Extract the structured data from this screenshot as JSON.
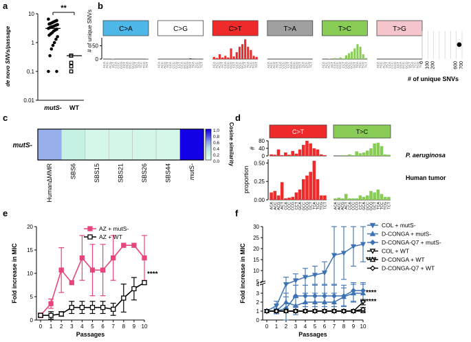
{
  "panel_labels": {
    "a": "a",
    "b": "b",
    "c": "c",
    "d": "d",
    "e": "e",
    "f": "f"
  },
  "chart_data": [
    {
      "panel": "a",
      "type": "scatter",
      "ylabel": "de novo SNVs/passage",
      "y_scale": "log",
      "ylim": [
        0.01,
        10
      ],
      "yticks": [
        "10",
        "1",
        "0.1",
        "0.01"
      ],
      "categories": [
        "mutS-",
        "WT"
      ],
      "significance": "**",
      "series": [
        {
          "name": "mutS-",
          "marker": "filled-circle",
          "values": [
            6.5,
            5.8,
            5.5,
            5.2,
            4.9,
            4.6,
            4.4,
            4.2,
            4.0,
            3.8,
            3.6,
            3.5,
            3.3,
            3.1,
            2.9,
            2.7,
            2.5,
            2.2,
            2.0,
            1.8,
            1.6,
            1.3,
            1.0,
            0.8,
            0.6,
            0.35,
            0.1,
            0.1
          ]
        },
        {
          "name": "WT",
          "marker": "open-square",
          "values": [
            0.35,
            0.35,
            0.35,
            0.35,
            0.35,
            0.35,
            0.2,
            0.15,
            0.1
          ]
        }
      ]
    },
    {
      "panel": "b",
      "type": "bar",
      "ylabel": "# of unique SNVs",
      "yticks": [
        "50",
        "0"
      ],
      "ylim": [
        0,
        80
      ],
      "groups": [
        {
          "label": "C>A",
          "color": "#4db8e8",
          "values": [
            0,
            0,
            0,
            1,
            0,
            0,
            0,
            0,
            0,
            0,
            0,
            0,
            0,
            0,
            0,
            1
          ]
        },
        {
          "label": "C>G",
          "color": "#ffffff",
          "values": [
            0,
            0,
            0,
            0,
            0,
            0,
            0,
            0,
            0,
            0,
            0,
            2,
            1,
            0,
            0,
            0
          ]
        },
        {
          "label": "C>T",
          "color": "#ee2a2a",
          "values": [
            8,
            4,
            18,
            6,
            12,
            6,
            40,
            10,
            26,
            46,
            56,
            74,
            46,
            34,
            12,
            8
          ]
        },
        {
          "label": "T>A",
          "color": "#a0a0a0",
          "values": [
            0,
            0,
            0,
            0,
            0,
            0,
            0,
            0,
            0,
            0,
            0,
            0,
            0,
            0,
            0,
            0
          ]
        },
        {
          "label": "T>C",
          "color": "#88cc55",
          "values": [
            0,
            0,
            1,
            0,
            4,
            0,
            6,
            2,
            14,
            22,
            28,
            40,
            56,
            46,
            18,
            4
          ]
        },
        {
          "label": "T>G",
          "color": "#f4c6cc",
          "values": [
            0,
            0,
            0,
            0,
            0,
            0,
            0,
            0,
            0,
            0,
            0,
            0,
            0,
            0,
            0,
            0
          ]
        }
      ],
      "context_labels": [
        "ACA",
        "ACC",
        "ACG",
        "ACT",
        "CCA",
        "CCC",
        "CCG",
        "CCT",
        "GCA",
        "GCC",
        "GCG",
        "GCT",
        "TCA",
        "TCC",
        "TCG",
        "TCT"
      ],
      "side_plot": {
        "xlabel": "# of unique SNVs",
        "xticks": [
          "0",
          "100",
          "200",
          "300",
          "400",
          "500",
          "600",
          "700"
        ],
        "xlim": [
          0,
          700
        ],
        "point": 650
      }
    },
    {
      "panel": "c",
      "type": "heatmap",
      "row_label": "mutS-",
      "columns": [
        "HumanΔMMR",
        "SBS6",
        "SBS15",
        "SBS21",
        "SBS26",
        "SBS44",
        "mutS-"
      ],
      "values": [
        0.55,
        0.22,
        0.12,
        0.14,
        0.14,
        0.12,
        1.0
      ],
      "colorbar_label": "Cosine similarity",
      "colorbar_ticks": [
        "1.0",
        "0.8",
        "0.6",
        "0.4",
        "0.2",
        "0.0"
      ]
    },
    {
      "panel": "d",
      "type": "bar",
      "groups": [
        {
          "label": "C>T",
          "color": "#ee2a2a"
        },
        {
          "label": "T>C",
          "color": "#88cc55"
        }
      ],
      "context_labels": [
        "ACA",
        "ACC",
        "ACG",
        "ACT",
        "CCA",
        "CCC",
        "CCG",
        "CCT",
        "GCA",
        "GCC",
        "GCG",
        "GCT",
        "TCA",
        "TCC",
        "TCG",
        "TCT"
      ],
      "rows": [
        {
          "species": "P. aeruginosa",
          "ylabel": "#",
          "ylim": [
            0,
            80
          ],
          "yticks": [
            "80",
            "40",
            "0"
          ],
          "ct_values": [
            8,
            6,
            34,
            4,
            18,
            6,
            26,
            12,
            34,
            58,
            80,
            66,
            40,
            34,
            8,
            4
          ],
          "tc_values": [
            0,
            0,
            4,
            0,
            8,
            4,
            24,
            14,
            18,
            28,
            40,
            66,
            70,
            52,
            8,
            6
          ]
        },
        {
          "species": "Human tumor",
          "ylabel": "proportion",
          "ylim": [
            0,
            0.55
          ],
          "yticks": [
            "0.50",
            "0.25",
            "0.00"
          ],
          "ct_values": [
            0.1,
            0.12,
            0.06,
            0.24,
            0.02,
            0.03,
            0.04,
            0.1,
            0.14,
            0.28,
            0.33,
            0.38,
            0.53,
            0.28,
            0.06,
            0.06
          ],
          "tc_values": [
            0.02,
            0.03,
            0.02,
            0.08,
            0.02,
            0.02,
            0.02,
            0.06,
            0.04,
            0.06,
            0.12,
            0.1,
            0.14,
            0.08,
            0.04,
            0.04
          ]
        }
      ]
    },
    {
      "panel": "e",
      "type": "line",
      "xlabel": "Passages",
      "ylabel": "Fold increase in MIC",
      "xlim": [
        0,
        10
      ],
      "ylim": [
        0,
        20
      ],
      "xticks": [
        "0",
        "1",
        "2",
        "3",
        "4",
        "5",
        "6",
        "7",
        "8",
        "9",
        "10"
      ],
      "yticks": [
        "0",
        "5",
        "10",
        "15",
        "20"
      ],
      "significance": "****",
      "series": [
        {
          "name": "AZ + mutS-",
          "color": "#e8457d",
          "marker": "filled-square",
          "x": [
            0,
            1,
            2,
            3,
            4,
            5,
            6,
            7,
            8,
            9,
            10
          ],
          "y": [
            1,
            3.5,
            10.7,
            8,
            13.3,
            10.7,
            10.7,
            13.3,
            16,
            16,
            13.3
          ],
          "err": [
            0.5,
            1,
            4.8,
            0,
            4.8,
            5.5,
            5.5,
            4.8,
            0,
            0,
            4.8
          ]
        },
        {
          "name": "AZ + WT",
          "color": "#000000",
          "marker": "open-square",
          "x": [
            0,
            1,
            2,
            3,
            4,
            5,
            6,
            7,
            8,
            9,
            10
          ],
          "y": [
            1,
            1,
            1.3,
            2.7,
            2.7,
            2.7,
            2.7,
            2.3,
            4.7,
            6.7,
            8
          ],
          "err": [
            0.3,
            0.8,
            0.5,
            1.3,
            1.3,
            1.3,
            1.3,
            1.3,
            3,
            2.4,
            0
          ]
        }
      ]
    },
    {
      "panel": "f",
      "type": "line",
      "xlabel": "Passages",
      "ylabel": "Fold increase in MIC",
      "xlim": [
        0,
        10
      ],
      "y_axis_break": true,
      "yticks_lower": [
        "0",
        "1",
        "2",
        "3",
        "4"
      ],
      "yticks_upper": [
        "5",
        "10",
        "15",
        "20",
        "25",
        "30"
      ],
      "significance": [
        "****",
        "****",
        "****"
      ],
      "series": [
        {
          "name": "COL + mutS-",
          "color": "#3d72b4",
          "marker": "filled-triangle-down",
          "x": [
            0,
            1,
            2,
            3,
            4,
            5,
            6,
            7,
            8,
            9,
            10
          ],
          "y": [
            1,
            1.6,
            4,
            5.5,
            7,
            8,
            9,
            17,
            18,
            21,
            22
          ],
          "err": [
            0,
            0.5,
            3,
            3,
            4,
            4,
            5,
            13,
            12,
            9,
            8
          ]
        },
        {
          "name": "D-CONGA + mutS-",
          "color": "#3d72b4",
          "marker": "filled-triangle-up",
          "x": [
            0,
            1,
            2,
            3,
            4,
            5,
            6,
            7,
            8,
            9,
            10
          ],
          "y": [
            1,
            1,
            2,
            1.6,
            2,
            2,
            2,
            2,
            2.6,
            3,
            3
          ],
          "err": [
            0,
            0.3,
            1,
            1,
            1,
            1,
            1,
            1,
            1,
            1,
            1
          ]
        },
        {
          "name": "D-CONGA-Q7 + mutS-",
          "color": "#3d72b4",
          "marker": "filled-diamond",
          "x": [
            0,
            1,
            2,
            3,
            4,
            5,
            6,
            7,
            8,
            9,
            10
          ],
          "y": [
            1,
            1,
            1.3,
            2.7,
            2.7,
            2.7,
            2.7,
            2.7,
            2.7,
            3.3,
            3.3
          ],
          "err": [
            0,
            0.3,
            1.3,
            1.2,
            1.2,
            1.2,
            1.2,
            1.2,
            1.2,
            1.2,
            1.2
          ]
        },
        {
          "name": "COL + WT",
          "color": "#000000",
          "marker": "open-triangle-down",
          "x": [
            0,
            1,
            2,
            3,
            4,
            5,
            6,
            7,
            8,
            9,
            10
          ],
          "y": [
            1,
            1,
            1,
            1,
            1,
            1,
            1,
            1,
            1,
            1,
            2
          ],
          "err": [
            0,
            0,
            0,
            0,
            0,
            0,
            0,
            0,
            0,
            0,
            0.3
          ]
        },
        {
          "name": "D-CONGA + WT",
          "color": "#000000",
          "marker": "open-triangle-up",
          "x": [
            0,
            1,
            2,
            3,
            4,
            5,
            6,
            7,
            8,
            9,
            10
          ],
          "y": [
            1,
            1,
            1,
            1,
            1,
            1,
            1,
            1,
            1,
            1,
            1
          ],
          "err": [
            0,
            0,
            0,
            0,
            0,
            0,
            0,
            0,
            0,
            0,
            0
          ]
        },
        {
          "name": "D-CONGA-Q7 + WT",
          "color": "#000000",
          "marker": "open-diamond",
          "x": [
            0,
            1,
            2,
            3,
            4,
            5,
            6,
            7,
            8,
            9,
            10
          ],
          "y": [
            1,
            1,
            1,
            1,
            1,
            1,
            1,
            1,
            1,
            1,
            1.2
          ],
          "err": [
            0,
            0,
            0,
            0,
            0,
            0,
            0,
            0,
            0,
            0,
            0.2
          ]
        }
      ]
    }
  ]
}
